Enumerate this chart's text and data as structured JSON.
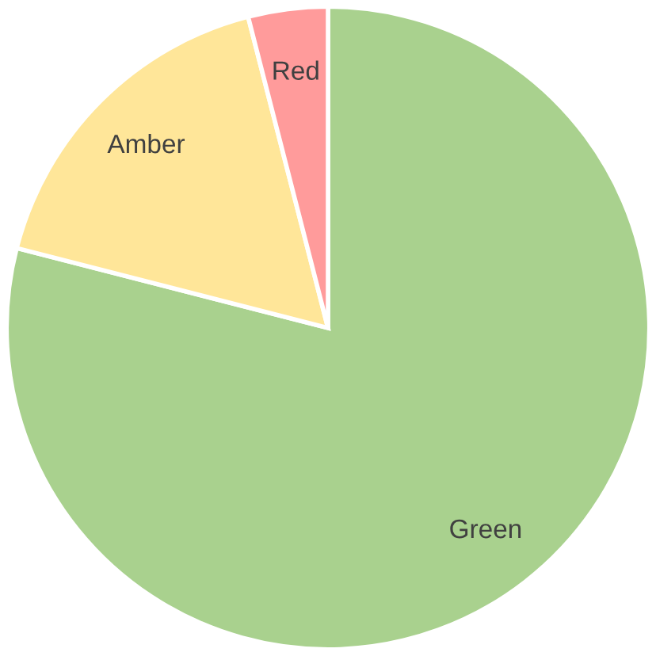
{
  "chart_data": {
    "type": "pie",
    "categories": [
      "Green",
      "Amber",
      "Red"
    ],
    "values": [
      79,
      17,
      4
    ],
    "colors": [
      "#a9d18e",
      "#ffe699",
      "#ff9b9b"
    ]
  }
}
